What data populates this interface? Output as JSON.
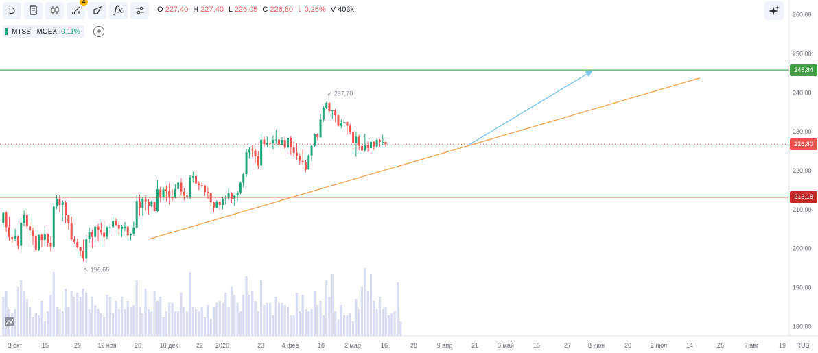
{
  "toolbar": {
    "interval": "D",
    "alert_badge": "4",
    "fx_label": "fx"
  },
  "ohlc": {
    "o_label": "O",
    "o": "227,40",
    "h_label": "H",
    "h": "227,40",
    "l_label": "L",
    "l": "226,05",
    "c_label": "C",
    "c": "226,80",
    "change_arrow": "↓",
    "change": "0,26%",
    "v_label": "V",
    "v": "403k"
  },
  "symbol": {
    "name": "MTSS · MOEX",
    "change": "0,11%"
  },
  "colors": {
    "up": "#1fa57a",
    "down": "#ef5350",
    "volume": "#d8ddf4",
    "trend": "#f5a24b",
    "projection": "#7ec8ee",
    "green_line": "#4caf50",
    "red_line": "#e53935"
  },
  "chart_data": {
    "type": "candlestick",
    "y_axis": {
      "ticks": [
        "260,00",
        "250,00",
        "240,00",
        "230,00",
        "220,00",
        "210,00",
        "200,00",
        "190,00",
        "180,00"
      ],
      "values": [
        260,
        250,
        240,
        230,
        220,
        210,
        200,
        190,
        180
      ],
      "range": [
        176,
        262
      ]
    },
    "x_axis": {
      "labels": [
        "3 окт",
        "15",
        "29",
        "12 ноя",
        "26",
        "10 дек",
        "22",
        "2026",
        "23",
        "4 фев",
        "18",
        "2 мар",
        "16",
        "28",
        "9 апр",
        "21",
        "3 май",
        "15",
        "27",
        "8 июн",
        "20",
        "2 июл",
        "14",
        "26",
        "7 авг",
        "19"
      ],
      "currency": "RUB"
    },
    "ohlc_series": [
      {
        "o": 206.6,
        "h": 209.3,
        "l": 205.5,
        "c": 209.2
      },
      {
        "o": 209.2,
        "h": 209.6,
        "l": 204.3,
        "c": 205.5
      },
      {
        "o": 205.5,
        "h": 208.2,
        "l": 202.0,
        "c": 202.9
      },
      {
        "o": 202.9,
        "h": 203.4,
        "l": 201.4,
        "c": 202.4
      },
      {
        "o": 202.4,
        "h": 205.1,
        "l": 201.9,
        "c": 203.1
      },
      {
        "o": 203.1,
        "h": 203.4,
        "l": 199.7,
        "c": 200.7
      },
      {
        "o": 200.7,
        "h": 207.7,
        "l": 199.0,
        "c": 206.6
      },
      {
        "o": 206.6,
        "h": 209.7,
        "l": 205.8,
        "c": 208.6
      },
      {
        "o": 208.6,
        "h": 210.2,
        "l": 205.0,
        "c": 205.7
      },
      {
        "o": 205.7,
        "h": 206.8,
        "l": 203.4,
        "c": 204.6
      },
      {
        "o": 204.6,
        "h": 205.4,
        "l": 201.0,
        "c": 203.3
      },
      {
        "o": 203.3,
        "h": 203.9,
        "l": 199.3,
        "c": 199.6
      },
      {
        "o": 199.6,
        "h": 203.6,
        "l": 199.4,
        "c": 203.5
      },
      {
        "o": 203.5,
        "h": 203.8,
        "l": 200.3,
        "c": 202.2
      },
      {
        "o": 202.2,
        "h": 205.8,
        "l": 200.5,
        "c": 203.7
      },
      {
        "o": 203.7,
        "h": 203.9,
        "l": 200.5,
        "c": 201.5
      },
      {
        "o": 201.5,
        "h": 203.1,
        "l": 199.3,
        "c": 200.5
      },
      {
        "o": 200.5,
        "h": 211.6,
        "l": 199.9,
        "c": 210.8
      },
      {
        "o": 210.8,
        "h": 213.7,
        "l": 210.1,
        "c": 212.8
      },
      {
        "o": 212.8,
        "h": 213.7,
        "l": 209.3,
        "c": 211.2
      },
      {
        "o": 211.2,
        "h": 212.4,
        "l": 207.0,
        "c": 211.9
      },
      {
        "o": 211.9,
        "h": 212.3,
        "l": 206.5,
        "c": 208.6
      },
      {
        "o": 208.6,
        "h": 208.8,
        "l": 204.9,
        "c": 206.5
      },
      {
        "o": 206.5,
        "h": 208.2,
        "l": 202.0,
        "c": 202.4
      },
      {
        "o": 202.4,
        "h": 203.2,
        "l": 201.2,
        "c": 201.7
      },
      {
        "o": 201.7,
        "h": 202.6,
        "l": 200.0,
        "c": 200.3
      },
      {
        "o": 200.3,
        "h": 200.5,
        "l": 198.0,
        "c": 199.4
      },
      {
        "o": 199.4,
        "h": 202.3,
        "l": 196.7,
        "c": 197.4
      },
      {
        "o": 197.4,
        "h": 203.4,
        "l": 196.6,
        "c": 202.4
      },
      {
        "o": 202.4,
        "h": 205.4,
        "l": 201.3,
        "c": 204.2
      },
      {
        "o": 204.2,
        "h": 204.8,
        "l": 200.1,
        "c": 203.0
      },
      {
        "o": 203.0,
        "h": 205.7,
        "l": 201.6,
        "c": 205.6
      },
      {
        "o": 205.6,
        "h": 206.3,
        "l": 201.8,
        "c": 204.8
      },
      {
        "o": 204.8,
        "h": 206.7,
        "l": 203.4,
        "c": 204.1
      },
      {
        "o": 204.1,
        "h": 207.3,
        "l": 200.6,
        "c": 203.0
      },
      {
        "o": 203.0,
        "h": 205.7,
        "l": 202.4,
        "c": 205.5
      },
      {
        "o": 205.5,
        "h": 206.3,
        "l": 203.5,
        "c": 205.5
      },
      {
        "o": 205.5,
        "h": 208.1,
        "l": 205.2,
        "c": 207.1
      },
      {
        "o": 207.1,
        "h": 207.8,
        "l": 205.8,
        "c": 206.1
      },
      {
        "o": 206.1,
        "h": 207.1,
        "l": 203.6,
        "c": 205.1
      },
      {
        "o": 205.1,
        "h": 206.1,
        "l": 203.0,
        "c": 205.6
      },
      {
        "o": 205.6,
        "h": 206.8,
        "l": 204.5,
        "c": 205.6
      },
      {
        "o": 205.6,
        "h": 205.9,
        "l": 202.9,
        "c": 203.4
      },
      {
        "o": 203.4,
        "h": 203.9,
        "l": 202.1,
        "c": 203.8
      },
      {
        "o": 203.8,
        "h": 206.9,
        "l": 203.3,
        "c": 205.4
      },
      {
        "o": 205.4,
        "h": 213.8,
        "l": 205.0,
        "c": 212.2
      },
      {
        "o": 212.2,
        "h": 213.9,
        "l": 208.4,
        "c": 210.4
      },
      {
        "o": 210.4,
        "h": 213.2,
        "l": 208.4,
        "c": 212.8
      },
      {
        "o": 212.8,
        "h": 213.7,
        "l": 209.7,
        "c": 212.0
      },
      {
        "o": 212.0,
        "h": 212.7,
        "l": 208.7,
        "c": 211.0
      },
      {
        "o": 211.0,
        "h": 212.3,
        "l": 210.6,
        "c": 212.0
      },
      {
        "o": 212.0,
        "h": 212.1,
        "l": 209.5,
        "c": 209.6
      },
      {
        "o": 209.6,
        "h": 217.6,
        "l": 209.3,
        "c": 215.2
      },
      {
        "o": 215.2,
        "h": 215.8,
        "l": 211.9,
        "c": 213.3
      },
      {
        "o": 213.3,
        "h": 215.7,
        "l": 212.4,
        "c": 215.2
      },
      {
        "o": 215.2,
        "h": 216.2,
        "l": 212.1,
        "c": 214.7
      },
      {
        "o": 214.7,
        "h": 216.8,
        "l": 211.3,
        "c": 213.1
      },
      {
        "o": 213.1,
        "h": 215.2,
        "l": 212.2,
        "c": 213.0
      },
      {
        "o": 213.0,
        "h": 216.5,
        "l": 212.9,
        "c": 215.3
      },
      {
        "o": 215.3,
        "h": 217.2,
        "l": 214.6,
        "c": 216.9
      },
      {
        "o": 216.9,
        "h": 218.0,
        "l": 213.6,
        "c": 214.6
      },
      {
        "o": 214.6,
        "h": 215.5,
        "l": 212.3,
        "c": 213.6
      },
      {
        "o": 213.6,
        "h": 213.8,
        "l": 211.9,
        "c": 213.1
      },
      {
        "o": 213.1,
        "h": 218.8,
        "l": 212.7,
        "c": 218.3
      },
      {
        "o": 218.3,
        "h": 219.7,
        "l": 216.9,
        "c": 218.6
      },
      {
        "o": 218.6,
        "h": 219.8,
        "l": 216.5,
        "c": 216.7
      },
      {
        "o": 216.7,
        "h": 217.3,
        "l": 215.0,
        "c": 216.3
      },
      {
        "o": 216.3,
        "h": 217.1,
        "l": 215.6,
        "c": 216.2
      },
      {
        "o": 216.2,
        "h": 216.2,
        "l": 213.5,
        "c": 214.5
      },
      {
        "o": 214.5,
        "h": 215.7,
        "l": 212.7,
        "c": 214.2
      },
      {
        "o": 214.2,
        "h": 214.4,
        "l": 210.8,
        "c": 211.9
      },
      {
        "o": 211.9,
        "h": 212.1,
        "l": 209.3,
        "c": 210.5
      },
      {
        "o": 210.5,
        "h": 212.4,
        "l": 210.3,
        "c": 212.1
      },
      {
        "o": 212.1,
        "h": 212.1,
        "l": 209.9,
        "c": 211.2
      },
      {
        "o": 211.2,
        "h": 213.4,
        "l": 210.1,
        "c": 212.8
      },
      {
        "o": 212.8,
        "h": 213.7,
        "l": 211.3,
        "c": 212.9
      },
      {
        "o": 212.9,
        "h": 215.4,
        "l": 212.5,
        "c": 214.2
      },
      {
        "o": 214.2,
        "h": 214.4,
        "l": 211.7,
        "c": 212.6
      },
      {
        "o": 212.6,
        "h": 213.6,
        "l": 210.9,
        "c": 213.6
      },
      {
        "o": 213.6,
        "h": 214.9,
        "l": 212.2,
        "c": 214.4
      },
      {
        "o": 214.4,
        "h": 217.2,
        "l": 214.0,
        "c": 216.9
      },
      {
        "o": 216.9,
        "h": 219.4,
        "l": 215.7,
        "c": 219.1
      },
      {
        "o": 219.1,
        "h": 225.6,
        "l": 218.4,
        "c": 224.7
      },
      {
        "o": 224.7,
        "h": 226.1,
        "l": 223.1,
        "c": 225.4
      },
      {
        "o": 225.4,
        "h": 226.5,
        "l": 223.5,
        "c": 225.2
      },
      {
        "o": 225.2,
        "h": 225.7,
        "l": 221.9,
        "c": 223.7
      },
      {
        "o": 223.7,
        "h": 225.0,
        "l": 220.4,
        "c": 221.3
      },
      {
        "o": 221.3,
        "h": 229.4,
        "l": 221.0,
        "c": 228.0
      },
      {
        "o": 228.0,
        "h": 228.8,
        "l": 226.2,
        "c": 226.8
      },
      {
        "o": 226.8,
        "h": 228.8,
        "l": 226.1,
        "c": 227.1
      },
      {
        "o": 227.1,
        "h": 227.7,
        "l": 226.0,
        "c": 227.0
      },
      {
        "o": 227.0,
        "h": 229.1,
        "l": 225.4,
        "c": 227.9
      },
      {
        "o": 227.9,
        "h": 230.5,
        "l": 226.8,
        "c": 228.0
      },
      {
        "o": 228.0,
        "h": 229.9,
        "l": 225.9,
        "c": 226.7
      },
      {
        "o": 226.7,
        "h": 228.6,
        "l": 226.5,
        "c": 227.9
      },
      {
        "o": 227.9,
        "h": 228.7,
        "l": 225.4,
        "c": 225.9
      },
      {
        "o": 225.9,
        "h": 228.6,
        "l": 224.8,
        "c": 228.4
      },
      {
        "o": 228.4,
        "h": 228.9,
        "l": 224.0,
        "c": 226.0
      },
      {
        "o": 226.0,
        "h": 227.5,
        "l": 223.6,
        "c": 224.6
      },
      {
        "o": 224.6,
        "h": 227.1,
        "l": 222.8,
        "c": 223.8
      },
      {
        "o": 223.8,
        "h": 224.5,
        "l": 221.6,
        "c": 222.5
      },
      {
        "o": 222.5,
        "h": 225.5,
        "l": 221.6,
        "c": 222.1
      },
      {
        "o": 222.1,
        "h": 222.8,
        "l": 219.6,
        "c": 220.3
      },
      {
        "o": 220.3,
        "h": 224.3,
        "l": 220.2,
        "c": 223.9
      },
      {
        "o": 223.9,
        "h": 226.7,
        "l": 222.4,
        "c": 226.4
      },
      {
        "o": 226.4,
        "h": 229.6,
        "l": 226.0,
        "c": 229.3
      },
      {
        "o": 229.3,
        "h": 229.6,
        "l": 227.8,
        "c": 228.6
      },
      {
        "o": 228.6,
        "h": 234.6,
        "l": 228.4,
        "c": 233.1
      },
      {
        "o": 233.1,
        "h": 236.6,
        "l": 232.5,
        "c": 236.2
      },
      {
        "o": 236.2,
        "h": 237.7,
        "l": 235.8,
        "c": 237.4
      },
      {
        "o": 237.4,
        "h": 237.6,
        "l": 234.8,
        "c": 235.3
      },
      {
        "o": 235.3,
        "h": 235.7,
        "l": 233.3,
        "c": 235.5
      },
      {
        "o": 235.5,
        "h": 235.9,
        "l": 232.4,
        "c": 234.2
      },
      {
        "o": 234.2,
        "h": 234.4,
        "l": 231.3,
        "c": 231.5
      },
      {
        "o": 231.5,
        "h": 233.1,
        "l": 230.8,
        "c": 232.3
      },
      {
        "o": 232.3,
        "h": 232.8,
        "l": 231.1,
        "c": 232.5
      },
      {
        "o": 232.5,
        "h": 232.6,
        "l": 229.2,
        "c": 231.5
      },
      {
        "o": 231.5,
        "h": 232.0,
        "l": 229.3,
        "c": 230.0
      },
      {
        "o": 230.0,
        "h": 230.3,
        "l": 225.3,
        "c": 227.2
      },
      {
        "o": 227.2,
        "h": 230.1,
        "l": 223.6,
        "c": 228.7
      },
      {
        "o": 228.7,
        "h": 229.2,
        "l": 225.3,
        "c": 226.4
      },
      {
        "o": 226.4,
        "h": 229.3,
        "l": 224.6,
        "c": 225.2
      },
      {
        "o": 225.2,
        "h": 229.5,
        "l": 224.8,
        "c": 226.6
      },
      {
        "o": 226.6,
        "h": 227.5,
        "l": 224.9,
        "c": 225.8
      },
      {
        "o": 225.8,
        "h": 227.8,
        "l": 224.9,
        "c": 227.4
      },
      {
        "o": 227.4,
        "h": 227.6,
        "l": 225.3,
        "c": 226.2
      },
      {
        "o": 226.2,
        "h": 228.4,
        "l": 225.9,
        "c": 227.9
      },
      {
        "o": 227.9,
        "h": 228.1,
        "l": 226.0,
        "c": 227.4
      },
      {
        "o": 227.4,
        "h": 229.2,
        "l": 226.6,
        "c": 227.4
      },
      {
        "o": 227.4,
        "h": 227.4,
        "l": 226.1,
        "c": 226.8
      }
    ],
    "volume": [
      0.19,
      0.22,
      0.13,
      0.11,
      0.13,
      0.24,
      0.27,
      0.22,
      0.18,
      0.14,
      0.09,
      0.11,
      0.1,
      0.17,
      0.07,
      0.12,
      0.2,
      0.31,
      0.14,
      0.13,
      0.12,
      0.23,
      0.14,
      0.22,
      0.19,
      0.21,
      0.19,
      0.23,
      0.21,
      0.13,
      0.19,
      0.15,
      0.13,
      0.11,
      0.09,
      0.2,
      0.19,
      0.11,
      0.17,
      0.13,
      0.19,
      0.13,
      0.17,
      0.14,
      0.15,
      0.27,
      0.14,
      0.11,
      0.23,
      0.13,
      0.12,
      0.22,
      0.17,
      0.19,
      0.09,
      0.12,
      0.16,
      0.16,
      0.12,
      0.12,
      0.21,
      0.14,
      0.12,
      0.31,
      0.14,
      0.13,
      0.12,
      0.14,
      0.09,
      0.15,
      0.08,
      0.14,
      0.16,
      0.17,
      0.16,
      0.21,
      0.14,
      0.24,
      0.2,
      0.16,
      0.12,
      0.2,
      0.29,
      0.2,
      0.22,
      0.17,
      0.12,
      0.27,
      0.15,
      0.16,
      0.16,
      0.1,
      0.19,
      0.16,
      0.16,
      0.15,
      0.14,
      0.1,
      0.1,
      0.21,
      0.12,
      0.2,
      0.13,
      0.12,
      0.13,
      0.22,
      0.15,
      0.17,
      0.1,
      0.27,
      0.19,
      0.3,
      0.12,
      0.08,
      0.15,
      0.1,
      0.1,
      0.11,
      0.07,
      0.18,
      0.13,
      0.24,
      0.33,
      0.22,
      0.3,
      0.17,
      0.13,
      0.19,
      0.13,
      0.14,
      0.1,
      0.11,
      0.12,
      0.26,
      0.07
    ],
    "annotations": {
      "high_label": "237,70",
      "high_value": 237.7,
      "low_label": "196,65",
      "low_value": 196.65
    },
    "horizontal_lines": [
      {
        "value": 245.84,
        "label": "245,84",
        "color": "#4caf50"
      },
      {
        "value": 213.18,
        "label": "213,18",
        "color": "#e53935"
      }
    ],
    "last_price": {
      "value": 226.8,
      "label": "226,80",
      "color": "#ef5350"
    },
    "trendline": {
      "from": {
        "bar": 49,
        "value": 202.4
      },
      "to": {
        "bar": 235,
        "value": 243.8
      }
    },
    "projection_arrow": {
      "from": {
        "bar": 157,
        "value": 226.6
      },
      "to": {
        "bar": 199,
        "value": 245.8
      }
    },
    "grid": false
  }
}
